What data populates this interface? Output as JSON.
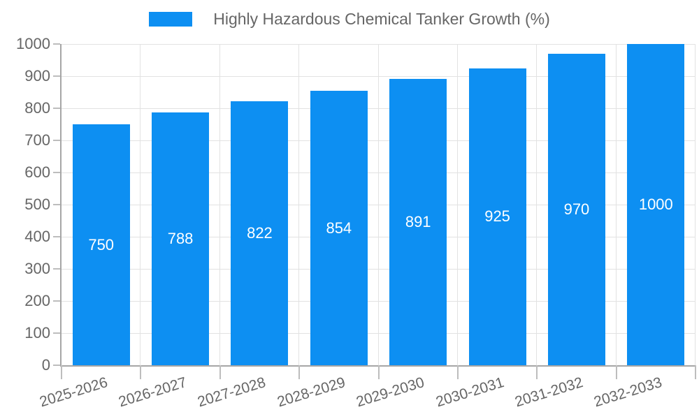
{
  "legend": {
    "label": "Highly Hazardous Chemical Tanker Growth (%)"
  },
  "chart_data": {
    "type": "bar",
    "title": "Highly Hazardous Chemical Tanker Growth (%)",
    "categories": [
      "2025-2026",
      "2026-2027",
      "2027-2028",
      "2028-2029",
      "2029-2030",
      "2030-2031",
      "2031-2032",
      "2032-2033"
    ],
    "values": [
      750,
      788,
      822,
      854,
      891,
      925,
      970,
      1000
    ],
    "xlabel": "",
    "ylabel": "",
    "ylim": [
      0,
      1000
    ],
    "y_ticks": [
      0,
      100,
      200,
      300,
      400,
      500,
      600,
      700,
      800,
      900,
      1000
    ],
    "bar_color": "#0d8ff2",
    "value_label_color": "#ffffff",
    "axis_text_color": "#666666",
    "grid": true,
    "legend_position": "top"
  }
}
